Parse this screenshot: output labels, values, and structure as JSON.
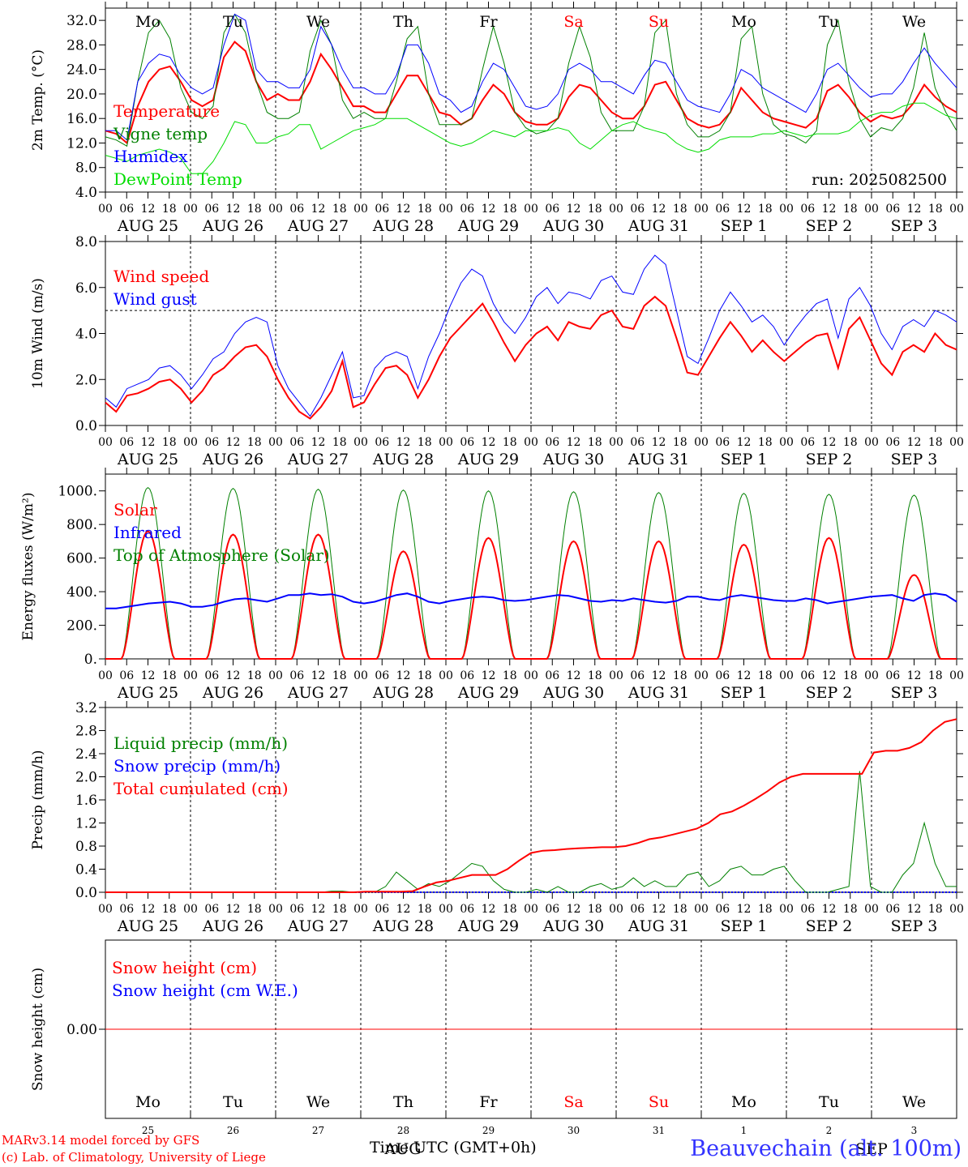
{
  "footer": {
    "model_line": "MARv3.14 model forced by GFS",
    "credit_line": "(c) Lab. of Climatology, University of Liege",
    "station": "Beauvechain (alt. 100m)",
    "x_title": "Time UTC (GMT+0h)"
  },
  "colors": {
    "temperature": "#ff0000",
    "vigne": "#008000",
    "humidex": "#0000ff",
    "dewpoint": "#00dd00",
    "weekend": "#ff0000",
    "weekday": "#000000"
  },
  "chart_data": {
    "shared": {
      "dates": [
        "AUG 25",
        "AUG 26",
        "AUG 27",
        "AUG 28",
        "AUG 29",
        "AUG 30",
        "AUG 31",
        "SEP  1",
        "SEP  2",
        "SEP  3"
      ],
      "hour_ticks": [
        "00",
        "06",
        "12",
        "18"
      ],
      "weekdays": [
        "Mo",
        "Tu",
        "We",
        "Th",
        "Fr",
        "Sa",
        "Su",
        "Mo",
        "Tu",
        "We"
      ],
      "weekend_days": [
        "Sa",
        "Su"
      ]
    },
    "panels": [
      {
        "id": "temp",
        "type": "line",
        "ylabel": "2m Temp. (°C)",
        "ylim": [
          4.0,
          34.0
        ],
        "yticks": [
          "4.0",
          "8.0",
          "12.0",
          "16.0",
          "20.0",
          "24.0",
          "28.0",
          "32.0"
        ],
        "run_label": "run: 2025082500",
        "series": [
          {
            "name": "Temperature",
            "color": "#ff0000",
            "width": 2,
            "values": [
              14,
              13.5,
              12,
              18,
              22,
              24,
              24.5,
              22,
              19,
              18,
              19,
              26,
              28.5,
              27,
              22,
              19,
              20,
              19,
              19,
              22,
              26.5,
              24,
              21,
              18,
              18,
              17,
              17,
              20,
              23,
              23,
              20,
              17,
              16.5,
              15,
              16,
              19,
              21.5,
              20,
              17,
              15.5,
              15,
              15,
              16,
              19.5,
              21.5,
              21,
              19,
              17,
              16,
              16,
              18,
              21.5,
              22,
              19,
              16,
              15,
              14.5,
              15,
              17,
              21,
              19,
              17,
              16,
              15.5,
              15,
              14.5,
              16,
              20.5,
              21.5,
              19.5,
              17,
              15.5,
              16.5,
              16,
              16.5,
              18.5,
              21.5,
              19.5,
              18,
              17
            ]
          },
          {
            "name": "Vigne temp",
            "color": "#008000",
            "width": 1,
            "values": [
              13,
              12.5,
              11.5,
              22,
              30,
              32,
              29,
              21,
              17,
              16,
              18,
              30,
              33,
              30,
              22,
              17,
              16,
              16,
              17,
              27,
              32,
              28,
              19,
              16,
              17,
              16,
              16,
              22,
              29,
              31,
              20,
              15,
              15,
              15,
              16,
              24,
              31,
              25,
              17,
              14.5,
              13.5,
              14,
              16,
              25,
              31,
              26,
              17,
              14,
              14,
              14,
              18,
              30,
              32,
              20,
              15,
              13,
              13,
              14,
              17,
              29,
              31,
              20,
              15,
              13.5,
              13,
              12,
              14,
              28,
              32,
              22,
              16,
              13,
              14.5,
              14,
              16,
              21,
              30,
              21,
              17,
              14
            ]
          },
          {
            "name": "Humidex",
            "color": "#0000ff",
            "width": 1,
            "values": [
              14,
              14,
              12.5,
              22,
              25,
              26.5,
              26,
              23,
              21,
              20,
              21,
              28,
              33,
              32,
              24,
              22,
              22,
              21,
              21,
              24,
              31,
              28,
              24,
              21,
              21,
              20,
              20,
              23,
              28,
              28,
              25,
              20,
              19,
              17,
              18,
              22,
              25,
              24,
              21,
              18,
              17.5,
              18,
              20,
              24,
              25,
              24,
              22,
              22,
              21,
              20,
              23,
              25.5,
              25,
              22,
              19,
              18,
              17.5,
              17,
              20,
              24,
              23,
              21,
              20,
              19,
              18,
              17,
              20,
              24,
              25,
              23,
              21,
              19.5,
              20,
              20,
              22,
              25,
              27.5,
              25,
              23,
              21
            ]
          },
          {
            "name": "DewPoint Temp",
            "color": "#00dd00",
            "width": 1,
            "values": [
              10,
              9.5,
              9,
              10,
              10.5,
              11,
              10.5,
              9.5,
              7,
              7,
              9,
              12,
              15.5,
              15,
              12,
              12,
              13,
              13.5,
              15,
              15,
              11,
              12,
              13,
              14,
              14.5,
              15,
              16,
              16,
              16,
              15,
              14,
              13,
              12,
              11.5,
              12,
              13,
              14,
              13.5,
              13,
              14,
              14,
              14,
              14.5,
              14,
              12,
              11,
              12.5,
              14,
              15,
              15.5,
              14.5,
              14,
              13.5,
              12,
              11,
              10.5,
              11,
              12.5,
              13,
              13,
              13,
              13.5,
              13.5,
              14,
              13.5,
              13,
              13.5,
              13.5,
              13.5,
              14,
              15.5,
              16.5,
              17,
              17,
              18,
              18.5,
              18.5,
              17.5,
              16.5,
              16
            ]
          }
        ]
      },
      {
        "id": "wind",
        "type": "line",
        "ylabel": "10m Wind (m/s)",
        "ylim": [
          0.0,
          8.0
        ],
        "yticks": [
          "0.0",
          "2.0",
          "4.0",
          "6.0",
          "8.0"
        ],
        "reference_line": 5.0,
        "series": [
          {
            "name": "Wind speed",
            "color": "#ff0000",
            "width": 2,
            "values": [
              1.0,
              0.6,
              1.3,
              1.4,
              1.6,
              1.9,
              2.0,
              1.6,
              1.0,
              1.5,
              2.2,
              2.5,
              3.0,
              3.4,
              3.5,
              3.0,
              2.0,
              1.2,
              0.6,
              0.3,
              0.8,
              1.5,
              2.8,
              0.8,
              1.0,
              1.8,
              2.5,
              2.6,
              2.2,
              1.2,
              2.0,
              3.0,
              3.8,
              4.3,
              4.8,
              5.3,
              4.5,
              3.6,
              2.8,
              3.5,
              4.0,
              4.3,
              3.7,
              4.5,
              4.3,
              4.2,
              4.8,
              5.0,
              4.3,
              4.2,
              5.2,
              5.6,
              5.2,
              3.8,
              2.3,
              2.2,
              3.0,
              3.8,
              4.5,
              3.9,
              3.2,
              3.7,
              3.2,
              2.8,
              3.2,
              3.6,
              3.9,
              4.0,
              2.5,
              4.2,
              4.7,
              3.7,
              2.7,
              2.2,
              3.2,
              3.5,
              3.2,
              4.0,
              3.5,
              3.3
            ]
          },
          {
            "name": "Wind gust",
            "color": "#0000ff",
            "width": 1,
            "values": [
              1.2,
              0.8,
              1.6,
              1.8,
              2.0,
              2.5,
              2.6,
              2.2,
              1.6,
              2.2,
              2.9,
              3.2,
              4.0,
              4.5,
              4.7,
              4.5,
              2.6,
              1.6,
              1.0,
              0.4,
              1.2,
              2.2,
              3.2,
              1.2,
              1.3,
              2.5,
              3.0,
              3.2,
              3.0,
              1.6,
              3.0,
              4.0,
              5.2,
              6.2,
              6.8,
              6.5,
              5.3,
              4.5,
              4.0,
              4.7,
              5.6,
              6.0,
              5.3,
              5.8,
              5.7,
              5.5,
              6.3,
              6.5,
              5.8,
              5.7,
              6.8,
              7.4,
              7.0,
              5.0,
              3.0,
              2.7,
              3.8,
              5.0,
              5.8,
              5.2,
              4.5,
              4.8,
              4.3,
              3.5,
              4.2,
              4.8,
              5.3,
              5.5,
              3.8,
              5.5,
              6.0,
              5.2,
              4.0,
              3.3,
              4.3,
              4.6,
              4.3,
              5.0,
              4.8,
              4.5
            ]
          }
        ]
      },
      {
        "id": "flux",
        "type": "line",
        "ylabel": "Energy fluxes (W/m²)",
        "ylim": [
          0,
          1100
        ],
        "yticks": [
          "0.",
          "200.",
          "400.",
          "600.",
          "800.",
          "1000."
        ],
        "series": [
          {
            "name": "Solar",
            "color": "#ff0000",
            "width": 2,
            "day_peaks": [
              760,
              740,
              740,
              640,
              720,
              700,
              700,
              680,
              720,
              500
            ]
          },
          {
            "name": "Infrared",
            "color": "#0000ff",
            "width": 2,
            "values": [
              300,
              300,
              310,
              320,
              330,
              335,
              340,
              330,
              310,
              310,
              320,
              340,
              355,
              360,
              350,
              340,
              360,
              380,
              380,
              390,
              380,
              385,
              370,
              340,
              330,
              340,
              360,
              380,
              390,
              370,
              340,
              330,
              345,
              355,
              365,
              370,
              365,
              350,
              345,
              350,
              360,
              370,
              380,
              375,
              360,
              345,
              340,
              350,
              345,
              360,
              350,
              340,
              335,
              345,
              370,
              370,
              355,
              350,
              370,
              380,
              370,
              360,
              350,
              345,
              345,
              360,
              350,
              330,
              340,
              350,
              360,
              370,
              375,
              380,
              360,
              345,
              380,
              390,
              380,
              340
            ]
          },
          {
            "name": "Top of Atmosphere (Solar)",
            "color": "#008000",
            "width": 1,
            "day_peaks": [
              1020,
              1015,
              1010,
              1005,
              1000,
              995,
              990,
              985,
              980,
              975
            ]
          }
        ]
      },
      {
        "id": "precip",
        "type": "line",
        "ylabel": "Precip (mm/h)",
        "ylim": [
          0.0,
          3.2
        ],
        "yticks": [
          "0.0",
          "0.4",
          "0.8",
          "1.2",
          "1.6",
          "2.0",
          "2.4",
          "2.8",
          "3.2"
        ],
        "series": [
          {
            "name": "Liquid precip (mm/h)",
            "color": "#008000",
            "width": 1,
            "values": [
              0,
              0,
              0,
              0,
              0,
              0,
              0,
              0,
              0,
              0,
              0,
              0,
              0,
              0,
              0,
              0,
              0,
              0,
              0,
              0,
              0,
              0.02,
              0.02,
              0,
              0,
              0,
              0.1,
              0.35,
              0.2,
              0.05,
              0.15,
              0.1,
              0.2,
              0.35,
              0.5,
              0.45,
              0.2,
              0.05,
              0,
              0,
              0.05,
              0,
              0.1,
              0,
              0,
              0.1,
              0.15,
              0.05,
              0.1,
              0.25,
              0.1,
              0.2,
              0.1,
              0.1,
              0.3,
              0.35,
              0.1,
              0.2,
              0.4,
              0.45,
              0.3,
              0.3,
              0.4,
              0.45,
              0.2,
              0,
              0,
              0,
              0.05,
              0.1,
              2.1,
              0.1,
              0,
              0,
              0.3,
              0.5,
              1.2,
              0.5,
              0.1,
              0.1
            ]
          },
          {
            "name": "Snow precip (mm/h)",
            "color": "#0000ff",
            "width": 1,
            "values": []
          },
          {
            "name": "Total cumulated (cm)",
            "color": "#ff0000",
            "width": 2,
            "values": [
              0,
              0,
              0,
              0,
              0,
              0,
              0,
              0,
              0,
              0,
              0,
              0,
              0,
              0,
              0,
              0,
              0,
              0,
              0,
              0,
              0,
              0,
              0.01,
              0.01,
              0.01,
              0.01,
              0.02,
              0.1,
              0.17,
              0.2,
              0.25,
              0.3,
              0.3,
              0.3,
              0.4,
              0.55,
              0.68,
              0.72,
              0.73,
              0.75,
              0.76,
              0.77,
              0.78,
              0.78,
              0.8,
              0.85,
              0.92,
              0.95,
              1.0,
              1.05,
              1.1,
              1.2,
              1.35,
              1.4,
              1.5,
              1.62,
              1.75,
              1.9,
              2.0,
              2.05,
              2.05,
              2.05,
              2.05,
              2.05,
              2.05,
              2.42,
              2.45,
              2.45,
              2.5,
              2.6,
              2.8,
              2.95,
              3.0
            ]
          }
        ]
      },
      {
        "id": "snow",
        "type": "line",
        "ylabel": "Snow height (cm)",
        "ylim": [
          -1.0,
          1.0
        ],
        "yticks": [
          "0.00"
        ],
        "series": [
          {
            "name": "Snow height (cm)",
            "color": "#ff0000",
            "width": 1,
            "values": [
              0,
              0
            ]
          },
          {
            "name": "Snow height (cm W.E.)",
            "color": "#0000ff",
            "width": 1,
            "values": []
          }
        ],
        "day_numbers": [
          "25",
          "26",
          "27",
          "28",
          "29",
          "30",
          "31",
          "1",
          "2",
          "3"
        ],
        "month_labels": [
          "AUG",
          "SEP"
        ]
      }
    ]
  }
}
